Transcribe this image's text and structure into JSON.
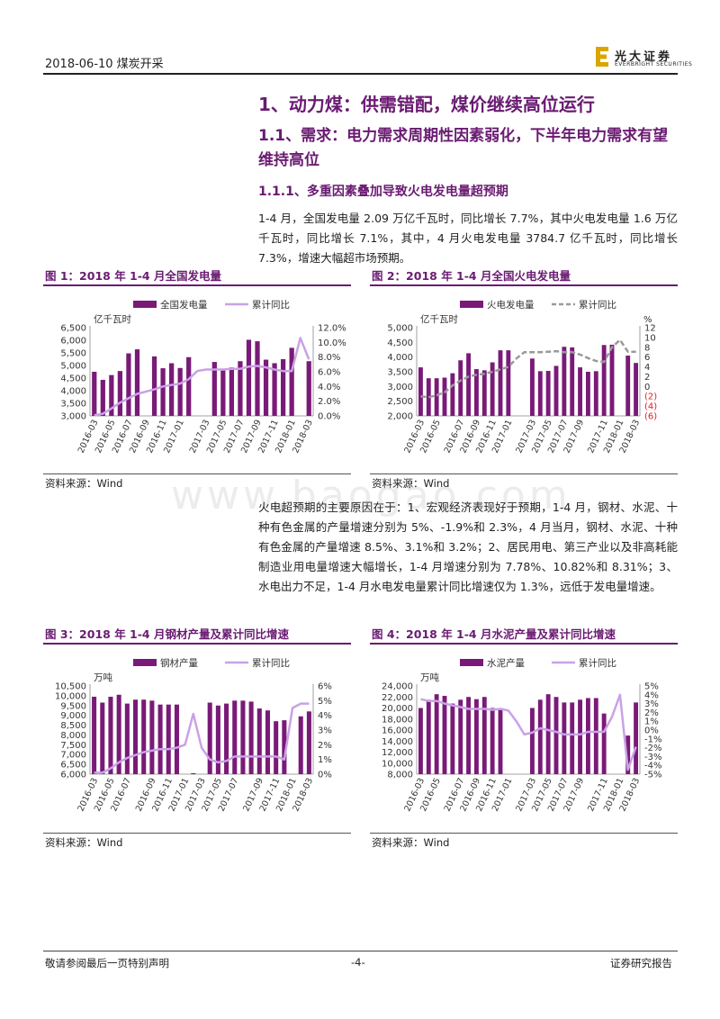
{
  "header": {
    "date_sector": "2018-06-10   煤炭开采",
    "logo_cn": "光大证券",
    "logo_en": "EVERBRIGHT SECURITIES"
  },
  "h1": "1、动力煤：供需错配，煤价继续高位运行",
  "h2": "1.1、需求：电力需求周期性因素弱化，下半年电力需求有望维持高位",
  "h3": "1.1.1、多重因素叠加导致火电发电量超预期",
  "para1": "1-4 月，全国发电量 2.09 万亿千瓦时，同比增长 7.7%，其中火电发电量 1.6 万亿千瓦时，同比增长 7.1%，其中，4 月火电发电量 3784.7 亿千瓦时，同比增长 7.3%，增速大幅超市场预期。",
  "para2": "火电超预期的主要原因在于：1、宏观经济表现好于预期，1-4 月，钢材、水泥、十种有色金属的产量增速分别为 5%、-1.9%和 2.3%，4 月当月，钢材、水泥、十种有色金属的产量增速 8.5%、3.1%和 3.2%；2、居民用电、第三产业以及非高耗能制造业用电量增速大幅增长，1-4 月增速分别为 7.78%、10.82%和 8.31%；3、水电出力不足，1-4 月水电发电量累计同比增速仅为 1.3%，远低于发电量增速。",
  "source_text": "资料来源：Wind",
  "watermark": "www.baogao.com",
  "footer": {
    "left": "敬请参阅最后一页特别声明",
    "center": "-4-",
    "right": "证券研究报告"
  },
  "colors": {
    "accent": "#6a1b72",
    "bar": "#7a1a78",
    "line": "#c9a2e6",
    "dash": "#9a9a9a",
    "neg": "#e0202a"
  },
  "chart_data": [
    {
      "type": "bar",
      "title": "图 1：2018 年 1-4 月全国发电量",
      "series": [
        {
          "name": "全国发电量",
          "kind": "bar",
          "axis": "left",
          "values": [
            4750,
            4430,
            4620,
            4780,
            5480,
            5640,
            null,
            5360,
            4890,
            5090,
            4900,
            5330,
            null,
            null,
            5140,
            4800,
            4920,
            5170,
            6020,
            5960,
            5230,
            5090,
            5250,
            5700,
            null,
            5170
          ]
        },
        {
          "name": "累计同比",
          "kind": "line",
          "axis": "right",
          "values": [
            0.1,
            0.3,
            1.0,
            1.8,
            2.4,
            3.0,
            3.3,
            3.6,
            4.0,
            4.2,
            4.4,
            5.0,
            6.1,
            6.3,
            6.3,
            6.3,
            6.4,
            6.4,
            6.7,
            6.8,
            6.6,
            6.3,
            6.1,
            6.1,
            10.6,
            7.7
          ]
        }
      ],
      "ylabel": "亿千瓦时",
      "ylim": [
        3000,
        6500
      ],
      "yticks": [
        "3,000",
        "3,500",
        "4,000",
        "4,500",
        "5,000",
        "5,500",
        "6,000",
        "6,500"
      ],
      "y2lim": [
        0,
        12
      ],
      "y2ticks": [
        "0.0%",
        "2.0%",
        "4.0%",
        "6.0%",
        "8.0%",
        "10.0%",
        "12.0%"
      ],
      "xticks": [
        "2016-03",
        "2016-05",
        "2016-07",
        "2016-09",
        "2016-11",
        "2017-01",
        "2017-03",
        "2017-05",
        "2017-07",
        "2017-09",
        "2017-11",
        "2018-01",
        "2018-03"
      ]
    },
    {
      "type": "bar",
      "title": "图 2：2018 年 1-4 月全国火电发电量",
      "series": [
        {
          "name": "火电发电量",
          "kind": "bar",
          "axis": "left",
          "values": [
            3650,
            3280,
            3280,
            3300,
            3450,
            3890,
            4130,
            3590,
            3550,
            3820,
            4230,
            4230,
            null,
            null,
            3950,
            3520,
            3530,
            3700,
            4350,
            4330,
            3650,
            3500,
            3520,
            4410,
            4420,
            null,
            4050,
            3800
          ]
        },
        {
          "name": "累计同比",
          "kind": "dash",
          "axis": "right",
          "values": [
            -2,
            -2.2,
            -1.8,
            -1.2,
            0.2,
            1.2,
            2.0,
            2.4,
            2.6,
            3.0,
            3.5,
            4.0,
            5.7,
            7.0,
            7.0,
            7.0,
            7.1,
            7.2,
            7.0,
            7.0,
            6.5,
            5.8,
            5.2,
            5.0,
            8.0,
            9.5,
            7.1,
            7.1
          ]
        }
      ],
      "ylabel": "亿千瓦时",
      "ylim": [
        2000,
        5000
      ],
      "yticks": [
        "2,000",
        "2,500",
        "3,000",
        "3,500",
        "4,000",
        "4,500",
        "5,000"
      ],
      "y2unit": "%",
      "y2lim": [
        -6,
        12
      ],
      "y2ticks": [
        "(6)",
        "(4)",
        "(2)",
        "0",
        "2",
        "4",
        "6",
        "8",
        "10",
        "12"
      ],
      "xticks": [
        "2016-03",
        "2016-05",
        "2016-07",
        "2016-09",
        "2016-11",
        "2017-01",
        "2017-03",
        "2017-05",
        "2017-07",
        "2017-09",
        "2017-11",
        "2018-01",
        "2018-03"
      ]
    },
    {
      "type": "bar",
      "title": "图 3：2018 年 1-4 月钢材产量及累计同比增速",
      "series": [
        {
          "name": "钢材产量",
          "kind": "bar",
          "axis": "left",
          "values": [
            9950,
            9650,
            9950,
            10050,
            9600,
            9800,
            9800,
            9750,
            9550,
            9550,
            9550,
            null,
            6050,
            null,
            9650,
            9500,
            9600,
            9750,
            9750,
            9700,
            9350,
            9250,
            8700,
            8750,
            null,
            8950,
            9200
          ]
        },
        {
          "name": "累计同比",
          "kind": "line",
          "axis": "right",
          "values": [
            0.1,
            0.1,
            0.4,
            0.8,
            1.1,
            1.3,
            1.5,
            1.6,
            1.7,
            1.7,
            1.8,
            2.0,
            4.1,
            1.8,
            1.0,
            0.8,
            0.9,
            1.2,
            1.2,
            1.2,
            1.2,
            1.2,
            1.2,
            1.0,
            4.5,
            4.8,
            4.8
          ]
        }
      ],
      "ylabel": "万吨",
      "ylim": [
        6000,
        10500
      ],
      "yticks": [
        "6,000",
        "6,500",
        "7,000",
        "7,500",
        "8,000",
        "8,500",
        "9,000",
        "9,500",
        "10,000",
        "10,500"
      ],
      "y2lim": [
        0,
        6
      ],
      "y2ticks": [
        "0%",
        "1%",
        "2%",
        "3%",
        "4%",
        "5%",
        "6%"
      ],
      "xticks": [
        "2016-03",
        "2016-05",
        "2016-07",
        "2016-09",
        "2016-11",
        "2017-01",
        "2017-03",
        "2017-05",
        "2017-07",
        "2017-09",
        "2017-11",
        "2018-01",
        "2018-03"
      ]
    },
    {
      "type": "bar",
      "title": "图 4：2018 年 1-4 月水泥产量及累计同比增速",
      "series": [
        {
          "name": "水泥产量",
          "kind": "bar",
          "axis": "left",
          "values": [
            20000,
            21500,
            22500,
            22200,
            20800,
            21500,
            22000,
            21600,
            22000,
            20000,
            20000,
            null,
            null,
            null,
            20000,
            21500,
            22500,
            22000,
            21000,
            21000,
            21500,
            21800,
            21800,
            19000,
            null,
            null,
            15000,
            21000
          ]
        },
        {
          "name": "累计同比",
          "kind": "line",
          "axis": "right",
          "values": [
            3.5,
            3.3,
            3.3,
            3.0,
            2.8,
            2.6,
            2.4,
            2.4,
            2.4,
            2.3,
            2.4,
            2.2,
            1.0,
            -0.5,
            -0.3,
            0.2,
            0.0,
            -0.2,
            -0.5,
            -0.5,
            -0.5,
            -0.2,
            -0.2,
            -0.2,
            1.5,
            4.0,
            -4.5,
            -1.9
          ]
        }
      ],
      "ylabel": "万吨",
      "ylim": [
        8000,
        24000
      ],
      "yticks": [
        "8,000",
        "10,000",
        "12,000",
        "14,000",
        "16,000",
        "18,000",
        "20,000",
        "22,000",
        "24,000"
      ],
      "y2lim": [
        -5,
        5
      ],
      "y2ticks": [
        "-5%",
        "-4%",
        "-3%",
        "-2%",
        "-1%",
        "0%",
        "1%",
        "2%",
        "3%",
        "4%",
        "5%"
      ],
      "xticks": [
        "2016-03",
        "2016-05",
        "2016-07",
        "2016-09",
        "2016-11",
        "2017-01",
        "2017-03",
        "2017-05",
        "2017-07",
        "2017-09",
        "2017-11",
        "2018-01",
        "2018-03"
      ]
    }
  ]
}
